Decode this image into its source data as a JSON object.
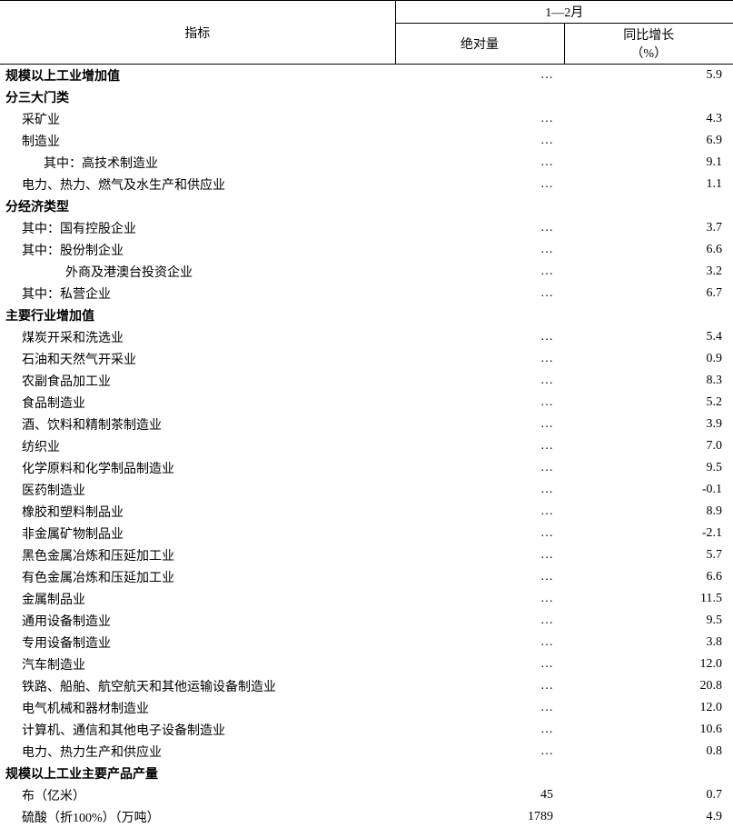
{
  "table": {
    "header": {
      "indicator": "指标",
      "period": "1—2月",
      "absolute": "绝对量",
      "growth_line1": "同比增长",
      "growth_line2": "（%）"
    },
    "rows": [
      {
        "label": "规模以上工业增加值",
        "abs": "…",
        "growth": "5.9",
        "bold": true,
        "indent": 0
      },
      {
        "label": "分三大门类",
        "abs": "",
        "growth": "",
        "bold": true,
        "indent": 0
      },
      {
        "label": "采矿业",
        "abs": "…",
        "growth": "4.3",
        "bold": false,
        "indent": 1
      },
      {
        "label": "制造业",
        "abs": "…",
        "growth": "6.9",
        "bold": false,
        "indent": 1
      },
      {
        "label": "其中：高技术制造业",
        "abs": "…",
        "growth": "9.1",
        "bold": false,
        "indent": 2
      },
      {
        "label": "电力、热力、燃气及水生产和供应业",
        "abs": "…",
        "growth": "1.1",
        "bold": false,
        "indent": 1
      },
      {
        "label": "分经济类型",
        "abs": "",
        "growth": "",
        "bold": true,
        "indent": 0
      },
      {
        "label": "其中：国有控股企业",
        "abs": "…",
        "growth": "3.7",
        "bold": false,
        "indent": 1
      },
      {
        "label": "其中：股份制企业",
        "abs": "…",
        "growth": "6.6",
        "bold": false,
        "indent": 1
      },
      {
        "label": "外商及港澳台投资企业",
        "abs": "…",
        "growth": "3.2",
        "bold": false,
        "indent": 3
      },
      {
        "label": "其中：私营企业",
        "abs": "…",
        "growth": "6.7",
        "bold": false,
        "indent": 1
      },
      {
        "label": "主要行业增加值",
        "abs": "",
        "growth": "",
        "bold": true,
        "indent": 0
      },
      {
        "label": "煤炭开采和洗选业",
        "abs": "…",
        "growth": "5.4",
        "bold": false,
        "indent": 1
      },
      {
        "label": "石油和天然气开采业",
        "abs": "…",
        "growth": "0.9",
        "bold": false,
        "indent": 1
      },
      {
        "label": "农副食品加工业",
        "abs": "…",
        "growth": "8.3",
        "bold": false,
        "indent": 1
      },
      {
        "label": "食品制造业",
        "abs": "…",
        "growth": "5.2",
        "bold": false,
        "indent": 1
      },
      {
        "label": "酒、饮料和精制茶制造业",
        "abs": "…",
        "growth": "3.9",
        "bold": false,
        "indent": 1
      },
      {
        "label": "纺织业",
        "abs": "…",
        "growth": "7.0",
        "bold": false,
        "indent": 1
      },
      {
        "label": "化学原料和化学制品制造业",
        "abs": "…",
        "growth": "9.5",
        "bold": false,
        "indent": 1
      },
      {
        "label": "医药制造业",
        "abs": "…",
        "growth": "-0.1",
        "bold": false,
        "indent": 1
      },
      {
        "label": "橡胶和塑料制品业",
        "abs": "…",
        "growth": "8.9",
        "bold": false,
        "indent": 1
      },
      {
        "label": "非金属矿物制品业",
        "abs": "…",
        "growth": "-2.1",
        "bold": false,
        "indent": 1
      },
      {
        "label": "黑色金属冶炼和压延加工业",
        "abs": "…",
        "growth": "5.7",
        "bold": false,
        "indent": 1
      },
      {
        "label": "有色金属冶炼和压延加工业",
        "abs": "…",
        "growth": "6.6",
        "bold": false,
        "indent": 1
      },
      {
        "label": "金属制品业",
        "abs": "…",
        "growth": "11.5",
        "bold": false,
        "indent": 1
      },
      {
        "label": "通用设备制造业",
        "abs": "…",
        "growth": "9.5",
        "bold": false,
        "indent": 1
      },
      {
        "label": "专用设备制造业",
        "abs": "…",
        "growth": "3.8",
        "bold": false,
        "indent": 1
      },
      {
        "label": "汽车制造业",
        "abs": "…",
        "growth": "12.0",
        "bold": false,
        "indent": 1
      },
      {
        "label": "铁路、船舶、航空航天和其他运输设备制造业",
        "abs": "…",
        "growth": "20.8",
        "bold": false,
        "indent": 1
      },
      {
        "label": "电气机械和器材制造业",
        "abs": "…",
        "growth": "12.0",
        "bold": false,
        "indent": 1
      },
      {
        "label": "计算机、通信和其他电子设备制造业",
        "abs": "…",
        "growth": "10.6",
        "bold": false,
        "indent": 1
      },
      {
        "label": "电力、热力生产和供应业",
        "abs": "…",
        "growth": "0.8",
        "bold": false,
        "indent": 1
      },
      {
        "label": "规模以上工业主要产品产量",
        "abs": "",
        "growth": "",
        "bold": true,
        "indent": 0
      },
      {
        "label": "布（亿米）",
        "abs": "45",
        "growth": "0.7",
        "bold": false,
        "indent": 1
      },
      {
        "label": "硫酸（折100%）（万吨）",
        "abs": "1789",
        "growth": "4.9",
        "bold": false,
        "indent": 1
      }
    ]
  }
}
